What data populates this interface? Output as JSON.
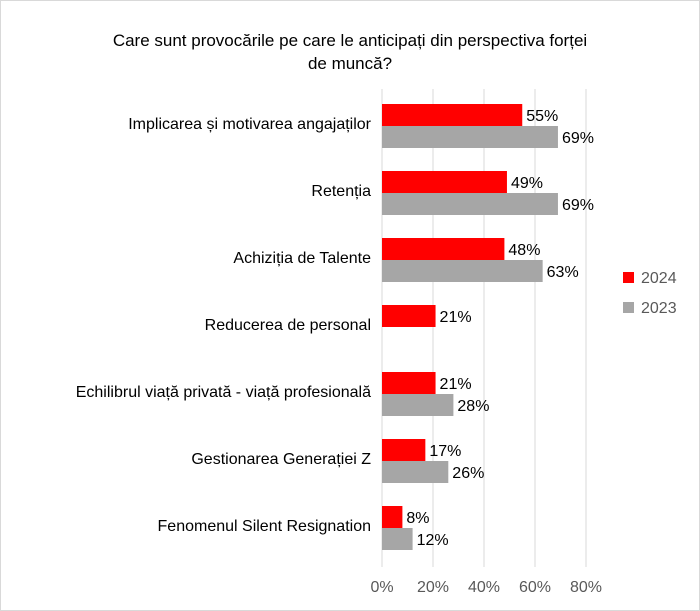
{
  "chart_data": {
    "type": "bar",
    "orientation": "horizontal",
    "title": "Care sunt provocările pe care le anticipați din perspectiva forței de muncă?",
    "title_lines": [
      "Care sunt provocările pe care le anticipați din perspectiva forței",
      "de muncă?"
    ],
    "categories": [
      "Implicarea și motivarea angajaților",
      "Retenția",
      "Achiziția de Talente",
      "Reducerea de personal",
      "Echilibrul viață privată - viață profesională",
      "Gestionarea Generației Z",
      "Fenomenul Silent Resignation"
    ],
    "series": [
      {
        "name": "2024",
        "color": "#ff0000",
        "values": [
          55,
          49,
          48,
          21,
          21,
          17,
          8
        ]
      },
      {
        "name": "2023",
        "color": "#a6a6a6",
        "values": [
          69,
          69,
          63,
          null,
          28,
          26,
          12
        ]
      }
    ],
    "value_suffix": "%",
    "xlim": [
      0,
      80
    ],
    "xticks": [
      0,
      20,
      40,
      60,
      80
    ],
    "xtick_labels": [
      "0%",
      "20%",
      "40%",
      "60%",
      "80%"
    ],
    "grid": "vertical",
    "legend_position": "right"
  }
}
